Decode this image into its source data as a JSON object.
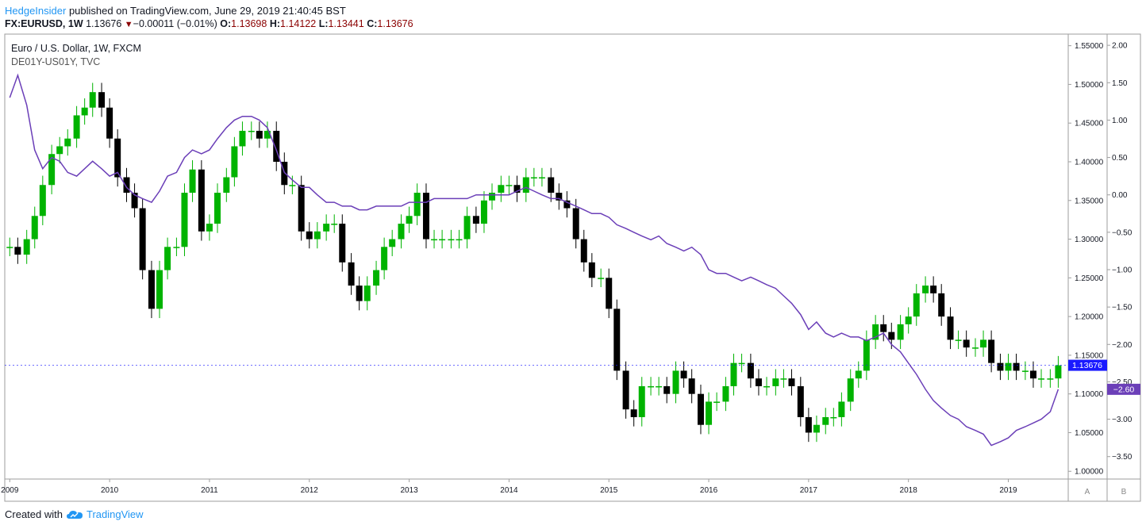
{
  "header": {
    "author": "HedgeInsider",
    "published": "published on TradingView.com, June 29, 2019 21:40:45 BST",
    "symbol": "FX:EURUSD, 1W",
    "last": "1.13676",
    "change": "−0.00011 (−0.01%)",
    "o_label": "O:",
    "o": "1.13698",
    "h_label": "H:",
    "h": "1.14122",
    "l_label": "L:",
    "l": "1.13441",
    "c_label": "C:",
    "c": "1.13676"
  },
  "legend": {
    "main": "Euro / U.S. Dollar, 1W, FXCM",
    "overlay": "DE01Y-US01Y, TVC"
  },
  "badges": {
    "price": "1.13676",
    "spread": "−2.60",
    "scale_a": "A",
    "scale_b": "B"
  },
  "footer": {
    "created_with": "Created with",
    "brand": "TradingView"
  },
  "colors": {
    "up": "#00b300",
    "down": "#000000",
    "overlay": "#6b3fb8",
    "price_badge": "#1a1aff",
    "author": "#2196f3",
    "ohlc": "#8b0000"
  },
  "chart_data": {
    "type": "line",
    "title": "Euro / U.S. Dollar, 1W, FXCM",
    "x_unit": "year",
    "x_ticks": [
      "2009",
      "2010",
      "2011",
      "2012",
      "2013",
      "2014",
      "2015",
      "2016",
      "2017",
      "2018",
      "2019"
    ],
    "xlim": [
      2008.95,
      2019.6
    ],
    "right_axis": {
      "ticks": [
        "1.55000",
        "1.50000",
        "1.45000",
        "1.40000",
        "1.35000",
        "1.30000",
        "1.25000",
        "1.20000",
        "1.15000",
        "1.10000",
        "1.05000",
        "1.00000"
      ],
      "ylim": [
        0.99,
        1.565
      ]
    },
    "left_axis": {
      "ticks": [
        "2.00",
        "1.50",
        "1.00",
        "0.50",
        "0.00",
        "−0.50",
        "−1.00",
        "−1.50",
        "−2.00",
        "−2.50",
        "−3.00",
        "−3.50"
      ],
      "ylim": [
        -3.8,
        2.15
      ]
    },
    "series": [
      {
        "name": "FX:EURUSD",
        "style": "candles",
        "x": [
          2009.0,
          2009.08,
          2009.17,
          2009.25,
          2009.33,
          2009.42,
          2009.5,
          2009.58,
          2009.67,
          2009.75,
          2009.83,
          2009.92,
          2010.0,
          2010.08,
          2010.17,
          2010.25,
          2010.33,
          2010.42,
          2010.5,
          2010.58,
          2010.67,
          2010.75,
          2010.83,
          2010.92,
          2011.0,
          2011.08,
          2011.17,
          2011.25,
          2011.33,
          2011.42,
          2011.5,
          2011.58,
          2011.67,
          2011.75,
          2011.83,
          2011.92,
          2012.0,
          2012.08,
          2012.17,
          2012.25,
          2012.33,
          2012.42,
          2012.5,
          2012.58,
          2012.67,
          2012.75,
          2012.83,
          2012.92,
          2013.0,
          2013.08,
          2013.17,
          2013.25,
          2013.33,
          2013.42,
          2013.5,
          2013.58,
          2013.67,
          2013.75,
          2013.83,
          2013.92,
          2014.0,
          2014.08,
          2014.17,
          2014.25,
          2014.33,
          2014.42,
          2014.5,
          2014.58,
          2014.67,
          2014.75,
          2014.83,
          2014.92,
          2015.0,
          2015.08,
          2015.17,
          2015.25,
          2015.33,
          2015.42,
          2015.5,
          2015.58,
          2015.67,
          2015.75,
          2015.83,
          2015.92,
          2016.0,
          2016.08,
          2016.17,
          2016.25,
          2016.33,
          2016.42,
          2016.5,
          2016.58,
          2016.67,
          2016.75,
          2016.83,
          2016.92,
          2017.0,
          2017.08,
          2017.17,
          2017.25,
          2017.33,
          2017.42,
          2017.5,
          2017.58,
          2017.67,
          2017.75,
          2017.83,
          2017.92,
          2018.0,
          2018.08,
          2018.17,
          2018.25,
          2018.33,
          2018.42,
          2018.5,
          2018.58,
          2018.67,
          2018.75,
          2018.83,
          2018.92,
          2019.0,
          2019.08,
          2019.17,
          2019.25,
          2019.33,
          2019.42,
          2019.5
        ],
        "close": [
          1.29,
          1.28,
          1.3,
          1.33,
          1.37,
          1.41,
          1.42,
          1.43,
          1.46,
          1.47,
          1.49,
          1.47,
          1.43,
          1.38,
          1.36,
          1.34,
          1.26,
          1.21,
          1.26,
          1.29,
          1.29,
          1.36,
          1.39,
          1.31,
          1.32,
          1.36,
          1.38,
          1.42,
          1.44,
          1.44,
          1.43,
          1.44,
          1.4,
          1.37,
          1.37,
          1.31,
          1.3,
          1.31,
          1.32,
          1.32,
          1.27,
          1.24,
          1.22,
          1.24,
          1.26,
          1.29,
          1.3,
          1.32,
          1.33,
          1.36,
          1.3,
          1.3,
          1.3,
          1.3,
          1.3,
          1.33,
          1.32,
          1.35,
          1.36,
          1.37,
          1.37,
          1.36,
          1.38,
          1.38,
          1.38,
          1.36,
          1.35,
          1.34,
          1.3,
          1.27,
          1.25,
          1.25,
          1.21,
          1.13,
          1.08,
          1.07,
          1.11,
          1.11,
          1.11,
          1.1,
          1.13,
          1.12,
          1.1,
          1.06,
          1.09,
          1.09,
          1.11,
          1.14,
          1.14,
          1.12,
          1.11,
          1.11,
          1.12,
          1.12,
          1.11,
          1.07,
          1.05,
          1.06,
          1.07,
          1.07,
          1.09,
          1.12,
          1.13,
          1.17,
          1.19,
          1.18,
          1.17,
          1.19,
          1.2,
          1.23,
          1.24,
          1.23,
          1.2,
          1.17,
          1.17,
          1.16,
          1.16,
          1.17,
          1.14,
          1.13,
          1.14,
          1.13,
          1.13,
          1.12,
          1.12,
          1.12,
          1.137
        ],
        "values": [
          1.29,
          1.28,
          1.3,
          1.33,
          1.37,
          1.41,
          1.42,
          1.43,
          1.46,
          1.47,
          1.49,
          1.47,
          1.43,
          1.38,
          1.36,
          1.34,
          1.26,
          1.21,
          1.26,
          1.29,
          1.29,
          1.36,
          1.39,
          1.31,
          1.32,
          1.36,
          1.38,
          1.42,
          1.44,
          1.44,
          1.43,
          1.44,
          1.4,
          1.37,
          1.37,
          1.31,
          1.3,
          1.31,
          1.32,
          1.32,
          1.27,
          1.24,
          1.22,
          1.24,
          1.26,
          1.29,
          1.3,
          1.32,
          1.33,
          1.36,
          1.3,
          1.3,
          1.3,
          1.3,
          1.3,
          1.33,
          1.32,
          1.35,
          1.36,
          1.37,
          1.37,
          1.36,
          1.38,
          1.38,
          1.38,
          1.36,
          1.35,
          1.34,
          1.3,
          1.27,
          1.25,
          1.25,
          1.21,
          1.13,
          1.08,
          1.07,
          1.11,
          1.11,
          1.11,
          1.1,
          1.13,
          1.12,
          1.1,
          1.06,
          1.09,
          1.09,
          1.11,
          1.14,
          1.14,
          1.12,
          1.11,
          1.11,
          1.12,
          1.12,
          1.11,
          1.07,
          1.05,
          1.06,
          1.07,
          1.07,
          1.09,
          1.12,
          1.13,
          1.17,
          1.19,
          1.18,
          1.17,
          1.19,
          1.2,
          1.23,
          1.24,
          1.23,
          1.2,
          1.17,
          1.17,
          1.16,
          1.16,
          1.17,
          1.14,
          1.13,
          1.14,
          1.13,
          1.13,
          1.12,
          1.12,
          1.12,
          1.137
        ],
        "axis": "right"
      },
      {
        "name": "DE01Y-US01Y",
        "style": "line",
        "x": [
          2009.0,
          2009.08,
          2009.17,
          2009.25,
          2009.33,
          2009.42,
          2009.5,
          2009.58,
          2009.67,
          2009.75,
          2009.83,
          2009.92,
          2010.0,
          2010.08,
          2010.17,
          2010.25,
          2010.33,
          2010.42,
          2010.5,
          2010.58,
          2010.67,
          2010.75,
          2010.83,
          2010.92,
          2011.0,
          2011.08,
          2011.17,
          2011.25,
          2011.33,
          2011.42,
          2011.5,
          2011.58,
          2011.67,
          2011.75,
          2011.83,
          2011.92,
          2012.0,
          2012.08,
          2012.17,
          2012.25,
          2012.33,
          2012.42,
          2012.5,
          2012.58,
          2012.67,
          2012.75,
          2012.83,
          2012.92,
          2013.0,
          2013.08,
          2013.17,
          2013.25,
          2013.33,
          2013.42,
          2013.5,
          2013.58,
          2013.67,
          2013.75,
          2013.83,
          2013.92,
          2014.0,
          2014.08,
          2014.17,
          2014.25,
          2014.33,
          2014.42,
          2014.5,
          2014.58,
          2014.67,
          2014.75,
          2014.83,
          2014.92,
          2015.0,
          2015.08,
          2015.17,
          2015.25,
          2015.33,
          2015.42,
          2015.5,
          2015.58,
          2015.67,
          2015.75,
          2015.83,
          2015.92,
          2016.0,
          2016.08,
          2016.17,
          2016.25,
          2016.33,
          2016.42,
          2016.5,
          2016.58,
          2016.67,
          2016.75,
          2016.83,
          2016.92,
          2017.0,
          2017.08,
          2017.17,
          2017.25,
          2017.33,
          2017.42,
          2017.5,
          2017.58,
          2017.67,
          2017.75,
          2017.83,
          2017.92,
          2018.0,
          2018.08,
          2018.17,
          2018.25,
          2018.33,
          2018.42,
          2018.5,
          2018.58,
          2018.67,
          2018.75,
          2018.83,
          2018.92,
          2019.0,
          2019.08,
          2019.17,
          2019.25,
          2019.33,
          2019.42,
          2019.5
        ],
        "values": [
          1.3,
          1.6,
          1.2,
          0.6,
          0.35,
          0.5,
          0.45,
          0.3,
          0.25,
          0.35,
          0.45,
          0.35,
          0.25,
          0.3,
          0.1,
          0.0,
          -0.05,
          -0.1,
          0.05,
          0.25,
          0.3,
          0.5,
          0.6,
          0.55,
          0.6,
          0.75,
          0.9,
          1.0,
          1.05,
          1.05,
          1.0,
          0.9,
          0.6,
          0.3,
          0.2,
          0.1,
          0.1,
          0.0,
          -0.1,
          -0.1,
          -0.15,
          -0.15,
          -0.2,
          -0.2,
          -0.15,
          -0.15,
          -0.15,
          -0.15,
          -0.1,
          -0.1,
          -0.1,
          -0.05,
          -0.05,
          -0.05,
          -0.05,
          -0.05,
          0.0,
          0.0,
          0.0,
          0.0,
          0.0,
          0.05,
          0.1,
          0.05,
          0.0,
          -0.05,
          -0.05,
          -0.1,
          -0.15,
          -0.2,
          -0.25,
          -0.25,
          -0.3,
          -0.4,
          -0.45,
          -0.5,
          -0.55,
          -0.6,
          -0.55,
          -0.65,
          -0.7,
          -0.75,
          -0.7,
          -0.8,
          -1.0,
          -1.05,
          -1.05,
          -1.1,
          -1.15,
          -1.1,
          -1.15,
          -1.2,
          -1.25,
          -1.35,
          -1.45,
          -1.6,
          -1.8,
          -1.7,
          -1.85,
          -1.9,
          -1.85,
          -1.9,
          -1.9,
          -1.95,
          -1.9,
          -1.85,
          -2.0,
          -2.1,
          -2.25,
          -2.4,
          -2.6,
          -2.75,
          -2.85,
          -2.95,
          -3.0,
          -3.1,
          -3.15,
          -3.2,
          -3.35,
          -3.3,
          -3.25,
          -3.15,
          -3.1,
          -3.05,
          -3.0,
          -2.9,
          -2.6
        ],
        "axis": "left"
      }
    ]
  }
}
